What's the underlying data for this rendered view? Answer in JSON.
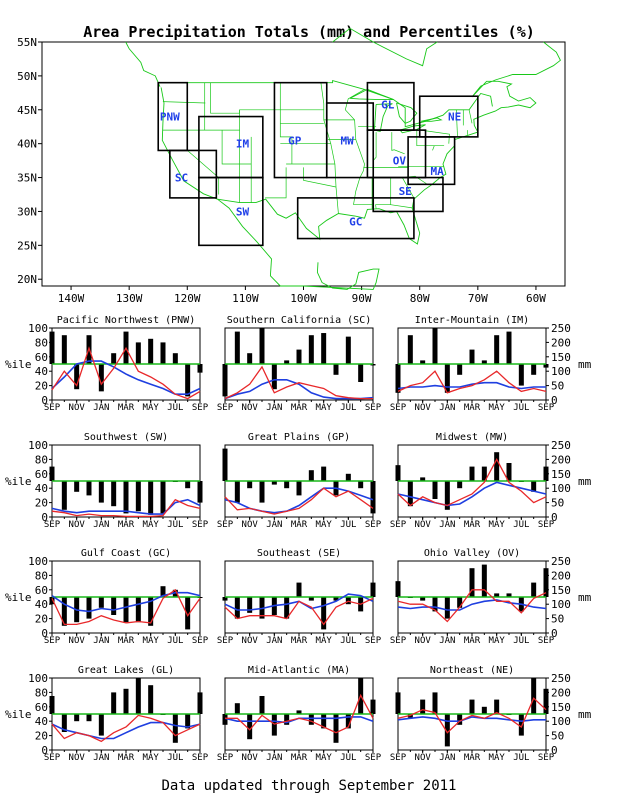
{
  "title": "Area Precipitation Totals (mm) and Percentiles (%)",
  "footer": "Data updated through September 2011",
  "colors": {
    "precip": "#e8282a",
    "normal": "#1f3fe0",
    "fifty": "#18b818",
    "bars": "#000000",
    "map_lines": "#18c818",
    "region_labels": "#2040e8"
  },
  "map": {
    "lat_labels": [
      "55N",
      "50N",
      "45N",
      "40N",
      "35N",
      "30N",
      "25N",
      "20N"
    ],
    "lon_labels": [
      "140W",
      "130W",
      "120W",
      "110W",
      "100W",
      "90W",
      "80W",
      "70W",
      "60W"
    ],
    "regions": [
      "PNW",
      "SC",
      "IM",
      "SW",
      "GP",
      "MW",
      "GL",
      "OV",
      "SE",
      "MA",
      "NE",
      "GC"
    ]
  },
  "axis": {
    "left_label": "%ile",
    "right_label": "mm",
    "left_ticks": [
      "0",
      "20",
      "40",
      "60",
      "80",
      "100"
    ],
    "right_ticks": [
      "0",
      "50",
      "100",
      "150",
      "200",
      "250"
    ],
    "month_labels": [
      "SEP",
      "NOV",
      "JAN",
      "MAR",
      "MAY",
      "JUL",
      "SEP"
    ]
  },
  "chart_data": {
    "type": "bar",
    "description_series": [
      "percentile bars (deviation from 50)",
      "precip (mm, red)",
      "normal (mm, blue)"
    ],
    "months": [
      "SEP",
      "OCT",
      "NOV",
      "DEC",
      "JAN",
      "FEB",
      "MAR",
      "APR",
      "MAY",
      "JUN",
      "JUL",
      "AUG",
      "SEP"
    ],
    "ylim_left": [
      0,
      100
    ],
    "ylim_right": [
      0,
      250
    ],
    "panels": [
      {
        "title": "Pacific Northwest (PNW)",
        "pct": [
          95,
          90,
          15,
          90,
          12,
          65,
          95,
          80,
          85,
          80,
          65,
          5,
          38
        ],
        "precip": [
          35,
          100,
          50,
          180,
          55,
          110,
          180,
          100,
          80,
          55,
          20,
          5,
          30
        ],
        "normal": [
          40,
          80,
          125,
          135,
          135,
          115,
          90,
          70,
          55,
          40,
          20,
          20,
          40
        ]
      },
      {
        "title": "Southern California (SC)",
        "pct": [
          5,
          95,
          65,
          100,
          15,
          55,
          70,
          90,
          93,
          35,
          88,
          25,
          48
        ],
        "precip": [
          5,
          25,
          55,
          115,
          25,
          45,
          60,
          50,
          40,
          15,
          8,
          5,
          5
        ],
        "normal": [
          5,
          20,
          30,
          55,
          70,
          70,
          55,
          25,
          10,
          5,
          5,
          5,
          8
        ]
      },
      {
        "title": "Inter-Mountain (IM)",
        "pct": [
          10,
          90,
          55,
          100,
          10,
          35,
          70,
          55,
          90,
          95,
          20,
          35,
          45
        ],
        "precip": [
          30,
          50,
          60,
          100,
          25,
          40,
          50,
          70,
          100,
          60,
          30,
          40,
          30
        ],
        "normal": [
          40,
          45,
          45,
          50,
          45,
          45,
          55,
          60,
          60,
          45,
          40,
          45,
          45
        ]
      },
      {
        "title": "Southwest (SW)",
        "pct": [
          70,
          10,
          35,
          30,
          20,
          15,
          5,
          8,
          3,
          5,
          50,
          40,
          20
        ],
        "precip": [
          20,
          15,
          5,
          10,
          5,
          5,
          2,
          2,
          2,
          5,
          60,
          40,
          30
        ],
        "normal": [
          30,
          20,
          15,
          20,
          20,
          20,
          20,
          15,
          10,
          10,
          50,
          60,
          40
        ]
      },
      {
        "title": "Great Plains (GP)",
        "pct": [
          95,
          20,
          40,
          20,
          45,
          40,
          30,
          65,
          70,
          30,
          60,
          40,
          5
        ],
        "precip": [
          70,
          25,
          30,
          20,
          10,
          20,
          30,
          60,
          100,
          70,
          90,
          60,
          30
        ],
        "normal": [
          60,
          50,
          30,
          20,
          15,
          20,
          40,
          70,
          100,
          100,
          90,
          75,
          60
        ]
      },
      {
        "title": "Midwest (MW)",
        "pct": [
          72,
          15,
          55,
          25,
          10,
          40,
          70,
          70,
          90,
          75,
          50,
          35,
          70
        ],
        "precip": [
          80,
          40,
          70,
          50,
          40,
          60,
          80,
          120,
          200,
          120,
          90,
          50,
          70
        ],
        "normal": [
          80,
          70,
          60,
          50,
          40,
          45,
          70,
          100,
          120,
          110,
          100,
          90,
          80
        ]
      },
      {
        "title": "Gulf Coast (GC)",
        "pct": [
          40,
          10,
          15,
          20,
          35,
          25,
          15,
          15,
          10,
          65,
          60,
          5,
          50
        ],
        "precip": [
          120,
          30,
          30,
          40,
          60,
          45,
          35,
          40,
          35,
          120,
          150,
          60,
          120
        ],
        "normal": [
          130,
          100,
          80,
          75,
          85,
          80,
          90,
          100,
          110,
          130,
          140,
          140,
          130
        ]
      },
      {
        "title": "Southeast (SE)",
        "pct": [
          45,
          20,
          28,
          20,
          25,
          20,
          70,
          45,
          5,
          45,
          40,
          30,
          70
        ],
        "precip": [
          90,
          50,
          60,
          60,
          60,
          50,
          110,
          90,
          30,
          90,
          110,
          100,
          120
        ],
        "normal": [
          100,
          80,
          80,
          85,
          95,
          100,
          110,
          85,
          95,
          110,
          135,
          130,
          110
        ]
      },
      {
        "title": "Ohio Valley (OV)",
        "pct": [
          72,
          50,
          45,
          30,
          20,
          35,
          90,
          95,
          55,
          55,
          30,
          70,
          90
        ],
        "precip": [
          110,
          100,
          100,
          80,
          40,
          90,
          150,
          150,
          110,
          110,
          70,
          120,
          140
        ],
        "normal": [
          90,
          85,
          90,
          90,
          80,
          80,
          100,
          110,
          115,
          105,
          100,
          90,
          85
        ]
      },
      {
        "title": "Great Lakes (GL)",
        "pct": [
          75,
          25,
          40,
          40,
          20,
          80,
          85,
          100,
          90,
          50,
          10,
          30,
          80
        ],
        "precip": [
          90,
          40,
          60,
          50,
          30,
          60,
          80,
          120,
          110,
          95,
          50,
          70,
          90
        ],
        "normal": [
          90,
          70,
          60,
          50,
          40,
          40,
          60,
          80,
          95,
          95,
          85,
          80,
          90
        ]
      },
      {
        "title": "Mid-Atlantic (MA)",
        "pct": [
          35,
          65,
          15,
          75,
          20,
          35,
          55,
          35,
          30,
          10,
          30,
          100,
          70
        ],
        "precip": [
          110,
          110,
          70,
          120,
          90,
          100,
          110,
          100,
          80,
          60,
          80,
          190,
          110
        ],
        "normal": [
          110,
          100,
          100,
          100,
          100,
          95,
          110,
          110,
          110,
          110,
          115,
          115,
          100
        ]
      },
      {
        "title": "Northeast (NE)",
        "pct": [
          80,
          45,
          70,
          80,
          5,
          35,
          70,
          60,
          70,
          50,
          20,
          100,
          85
        ],
        "precip": [
          110,
          120,
          140,
          130,
          60,
          100,
          120,
          110,
          130,
          110,
          80,
          180,
          140
        ],
        "normal": [
          105,
          110,
          115,
          110,
          100,
          100,
          115,
          110,
          110,
          105,
          100,
          105,
          105
        ]
      }
    ]
  }
}
